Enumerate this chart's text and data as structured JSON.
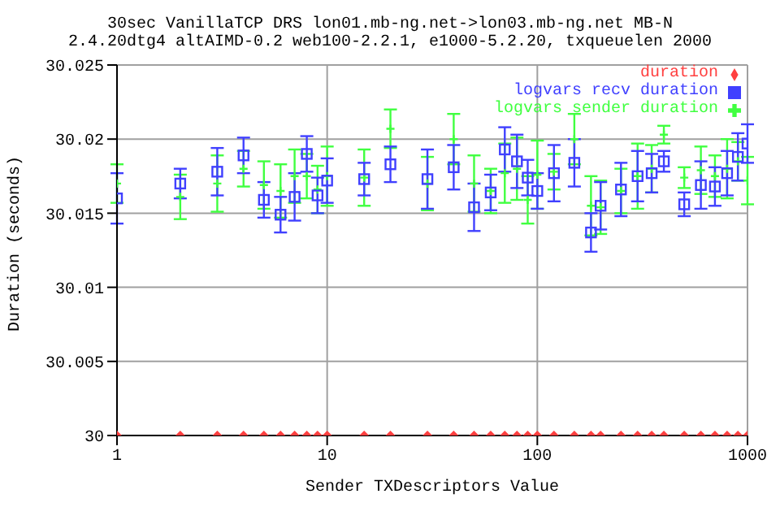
{
  "chart_data": {
    "type": "scatter",
    "title": "30sec VanillaTCP DRS lon01.mb-ng.net->lon03.mb-ng.net MB-N",
    "subtitle": "2.4.20dtg4 altAIMD-0.2 web100-2.2.1, e1000-5.2.20, txqueuelen 2000",
    "xlabel": "Sender TXDescriptors Value",
    "ylabel": "Duration (seconds)",
    "x": [
      1,
      2,
      3,
      4,
      5,
      6,
      7,
      8,
      9,
      10,
      15,
      20,
      30,
      40,
      50,
      60,
      70,
      80,
      90,
      100,
      120,
      150,
      180,
      200,
      250,
      300,
      350,
      400,
      500,
      600,
      700,
      800,
      900,
      1000
    ],
    "series": [
      {
        "name": "duration",
        "color": "#ff4040",
        "marker": "diamond",
        "values": [
          30,
          30,
          30,
          30,
          30,
          30,
          30,
          30,
          30,
          30,
          30,
          30,
          30,
          30,
          30,
          30,
          30,
          30,
          30,
          30,
          30,
          30,
          30,
          30,
          30,
          30,
          30,
          30,
          30,
          30,
          30,
          30,
          30,
          30
        ]
      },
      {
        "name": "logvars sender duration",
        "color": "#40ff40",
        "marker": "cross",
        "values": [
          30.017,
          30.0161,
          30.017,
          30.018,
          30.0169,
          30.0165,
          30.0175,
          30.0175,
          30.0166,
          30.0175,
          30.0174,
          30.0207,
          30.017,
          30.02,
          30.017,
          30.0165,
          30.0177,
          30.018,
          30.0159,
          30.0176,
          30.0178,
          30.02,
          30.0155,
          30.0154,
          30.0165,
          30.0175,
          30.018,
          30.0203,
          30.0174,
          30.0179,
          30.0175,
          30.018,
          30.0185,
          30.0172
        ],
        "errors": [
          0.0013,
          0.0015,
          0.0019,
          0.0012,
          0.0016,
          0.0018,
          0.0018,
          0.0015,
          0.0016,
          0.002,
          0.0019,
          0.0013,
          0.0018,
          0.0017,
          0.0019,
          0.0015,
          0.002,
          0.0021,
          0.0016,
          0.0023,
          0.0012,
          0.0017,
          0.002,
          0.0018,
          0.0015,
          0.0022,
          0.0016,
          0.0006,
          0.0007,
          0.0016,
          0.0014,
          0.002,
          0.0013,
          0.0016
        ]
      },
      {
        "name": "logvars recv duration",
        "color": "#4040ff",
        "marker": "square",
        "values": [
          30.016,
          30.017,
          30.0178,
          30.0189,
          30.0159,
          30.0149,
          30.0161,
          30.019,
          30.0162,
          30.0172,
          30.0173,
          30.0183,
          30.0173,
          30.0181,
          30.0154,
          30.0164,
          30.0193,
          30.0185,
          30.0174,
          30.0165,
          30.0177,
          30.0184,
          30.0137,
          30.0155,
          30.0166,
          30.0175,
          30.0177,
          30.0185,
          30.0156,
          30.0169,
          30.0168,
          30.0177,
          30.0188,
          30.0197
        ],
        "errors": [
          0.0017,
          0.001,
          0.0016,
          0.0012,
          0.0012,
          0.0012,
          0.0016,
          0.0012,
          0.0012,
          0.0015,
          0.0011,
          0.0012,
          0.002,
          0.0015,
          0.0016,
          0.0012,
          0.0015,
          0.0018,
          0.0012,
          0.0012,
          0.0019,
          0.0016,
          0.0013,
          0.0016,
          0.0018,
          0.0017,
          0.0013,
          0.0007,
          0.0008,
          0.0016,
          0.0013,
          0.0015,
          0.0016,
          0.0013
        ]
      }
    ],
    "log": "x",
    "xlim": [
      1,
      1000
    ],
    "xticks": [
      1,
      10,
      100,
      1000
    ],
    "ylim": [
      30,
      30.025
    ],
    "yticks": [
      30,
      30.005,
      30.01,
      30.015,
      30.02,
      30.025
    ],
    "grid": true,
    "legend": "top right"
  }
}
